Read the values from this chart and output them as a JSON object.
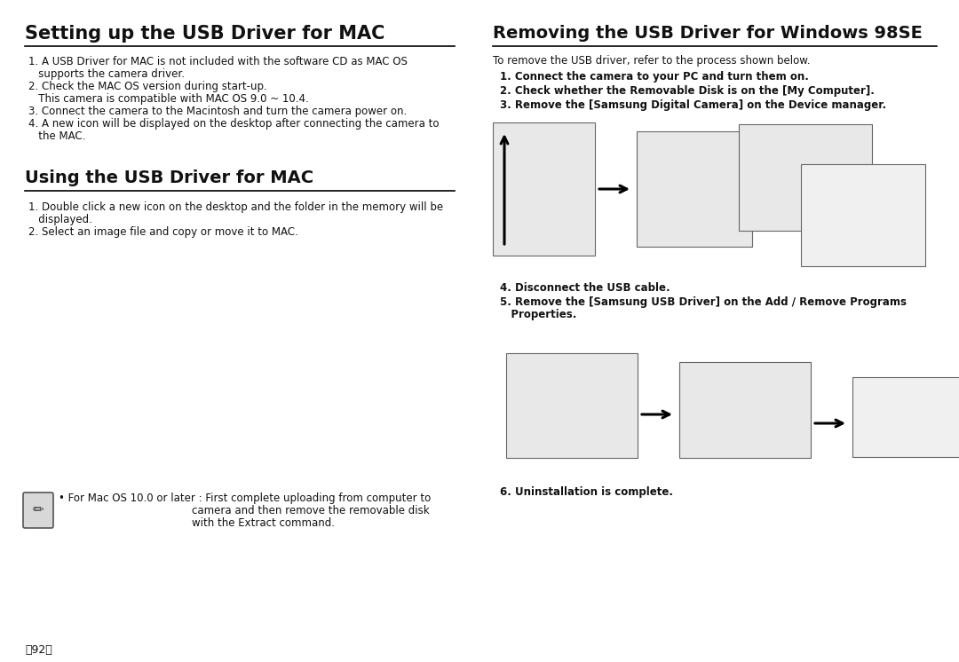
{
  "bg_color": "#ffffff",
  "left_title": "Setting up the USB Driver for MAC",
  "right_title": "Removing the USB Driver for Windows 98SE",
  "setup_items": [
    "1. A USB Driver for MAC is not included with the software CD as MAC OS",
    "   supports the camera driver.",
    "2. Check the MAC OS version during start-up.",
    "   This camera is compatible with MAC OS 9.0 ~ 10.4.",
    "3. Connect the camera to the Macintosh and turn the camera power on.",
    "4. A new icon will be displayed on the desktop after connecting the camera to",
    "   the MAC."
  ],
  "using_title": "Using the USB Driver for MAC",
  "using_items": [
    "1. Double click a new icon on the desktop and the folder in the memory will be",
    "   displayed.",
    "2. Select an image file and copy or move it to MAC."
  ],
  "note_line1": "• For Mac OS 10.0 or later : First complete uploading from computer to",
  "note_line2": "                                        camera and then remove the removable disk",
  "note_line3": "                                        with the Extract command.",
  "page_num": "〈92〉",
  "remove_intro": "To remove the USB driver, refer to the process shown below.",
  "remove_items_a": [
    "1. Connect the camera to your PC and turn them on.",
    "2. Check whether the Removable Disk is on the [My Computer].",
    "3. Remove the [Samsung Digital Camera] on the Device manager."
  ],
  "remove_item4": "4. Disconnect the USB cable.",
  "remove_item5a": "5. Remove the [Samsung USB Driver] on the Add / Remove Programs",
  "remove_item5b": "   Properties.",
  "remove_item6": "6. Uninstallation is complete."
}
